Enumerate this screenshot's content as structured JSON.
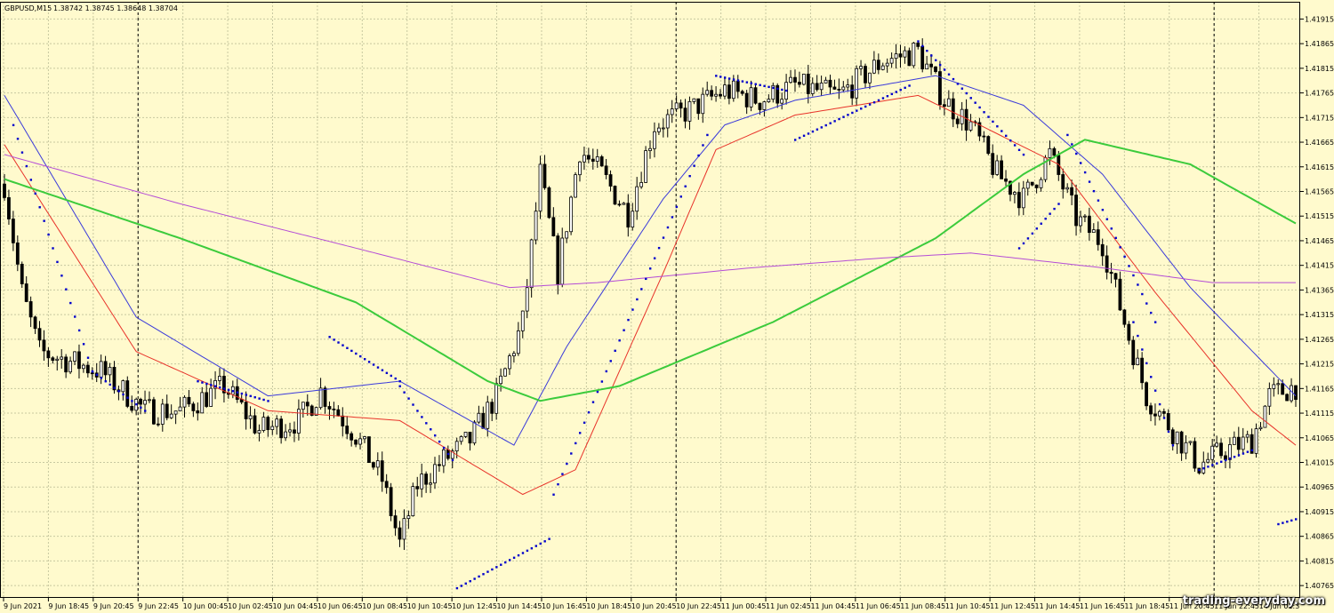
{
  "header": {
    "symbol_tf": "GBPUSD,M15",
    "ohlc": "1.38742 1.38745 1.38648 1.38704"
  },
  "watermark": "trading-everyday.com",
  "colors": {
    "background": "#FFFACD",
    "grid": "#C8C8A0",
    "candle": "#000000",
    "sar": "#0000CC",
    "ma_red": "#E8332A",
    "ma_blue": "#3A3ADA",
    "ma_green": "#3CCB3C",
    "ma_violet": "#B44CD6"
  },
  "chart_data": {
    "type": "candlestick",
    "symbol": "GBPUSD",
    "timeframe": "M15",
    "y_ticks": [
      "1.41915",
      "1.41865",
      "1.41815",
      "1.41765",
      "1.41715",
      "1.41665",
      "1.41615",
      "1.41565",
      "1.41515",
      "1.41465",
      "1.41415",
      "1.41365",
      "1.41315",
      "1.41265",
      "1.41215",
      "1.41165",
      "1.41115",
      "1.41065",
      "1.41015",
      "1.40965",
      "1.40915",
      "1.40865",
      "1.40815",
      "1.40765"
    ],
    "ylim": [
      1.4074,
      1.4195
    ],
    "x_ticks": [
      "9 Jun 2021",
      "9 Jun 18:45",
      "9 Jun 20:45",
      "9 Jun 22:45",
      "10 Jun 00:45",
      "10 Jun 02:45",
      "10 Jun 04:45",
      "10 Jun 06:45",
      "10 Jun 08:45",
      "10 Jun 10:45",
      "10 Jun 12:45",
      "10 Jun 14:45",
      "10 Jun 16:45",
      "10 Jun 18:45",
      "10 Jun 20:45",
      "10 Jun 22:45",
      "11 Jun 00:45",
      "11 Jun 02:45",
      "11 Jun 04:45",
      "11 Jun 06:45",
      "11 Jun 08:45",
      "11 Jun 10:45",
      "11 Jun 12:45",
      "11 Jun 14:45",
      "11 Jun 16:45",
      "11 Jun 18:45",
      "11 Jun 20:45",
      "11 Jun 22:45",
      "14 Jun 01:3"
    ],
    "day_separators": [
      "9 Jun 22:45",
      "10 Jun 22:45",
      "11 Jun 22:45"
    ],
    "price_keypoints": [
      [
        0,
        1.4158
      ],
      [
        4,
        1.4136
      ],
      [
        8,
        1.4124
      ],
      [
        15,
        1.4122
      ],
      [
        22,
        1.412
      ],
      [
        32,
        1.4112
      ],
      [
        40,
        1.4112
      ],
      [
        50,
        1.4117
      ],
      [
        58,
        1.4108
      ],
      [
        67,
        1.411
      ],
      [
        72,
        1.4116
      ],
      [
        80,
        1.4107
      ],
      [
        86,
        1.4098
      ],
      [
        90,
        1.4085
      ],
      [
        94,
        1.4097
      ],
      [
        100,
        1.4102
      ],
      [
        106,
        1.4106
      ],
      [
        112,
        1.4115
      ],
      [
        118,
        1.413
      ],
      [
        122,
        1.416
      ],
      [
        126,
        1.414
      ],
      [
        131,
        1.4165
      ],
      [
        136,
        1.416
      ],
      [
        142,
        1.4152
      ],
      [
        148,
        1.417
      ],
      [
        156,
        1.4173
      ],
      [
        164,
        1.4177
      ],
      [
        172,
        1.4175
      ],
      [
        180,
        1.4178
      ],
      [
        190,
        1.4176
      ],
      [
        200,
        1.4183
      ],
      [
        208,
        1.4185
      ],
      [
        214,
        1.4175
      ],
      [
        220,
        1.417
      ],
      [
        226,
        1.416
      ],
      [
        232,
        1.4155
      ],
      [
        238,
        1.4164
      ],
      [
        244,
        1.4151
      ],
      [
        250,
        1.4146
      ],
      [
        255,
        1.413
      ],
      [
        260,
        1.4115
      ],
      [
        266,
        1.4108
      ],
      [
        272,
        1.4101
      ],
      [
        278,
        1.4104
      ],
      [
        284,
        1.4106
      ],
      [
        288,
        1.4115
      ],
      [
        294,
        1.4117
      ]
    ],
    "series": [
      {
        "name": "ma_red",
        "color": "#E8332A",
        "points": [
          [
            0,
            1.4166
          ],
          [
            30,
            1.4124
          ],
          [
            60,
            1.4112
          ],
          [
            90,
            1.411
          ],
          [
            118,
            1.4095
          ],
          [
            130,
            1.41
          ],
          [
            150,
            1.414
          ],
          [
            162,
            1.4165
          ],
          [
            180,
            1.4172
          ],
          [
            208,
            1.4176
          ],
          [
            222,
            1.417
          ],
          [
            240,
            1.4162
          ],
          [
            262,
            1.4136
          ],
          [
            284,
            1.4112
          ],
          [
            294,
            1.4105
          ]
        ]
      },
      {
        "name": "ma_blue",
        "color": "#3A3ADA",
        "points": [
          [
            0,
            1.4176
          ],
          [
            30,
            1.4131
          ],
          [
            60,
            1.4115
          ],
          [
            90,
            1.4118
          ],
          [
            116,
            1.4105
          ],
          [
            128,
            1.4125
          ],
          [
            150,
            1.4155
          ],
          [
            164,
            1.417
          ],
          [
            180,
            1.4175
          ],
          [
            212,
            1.418
          ],
          [
            232,
            1.4174
          ],
          [
            250,
            1.416
          ],
          [
            270,
            1.4137
          ],
          [
            294,
            1.4115
          ]
        ]
      },
      {
        "name": "ma_green",
        "color": "#3CCB3C",
        "points": [
          [
            0,
            1.4159
          ],
          [
            40,
            1.4147
          ],
          [
            80,
            1.4134
          ],
          [
            110,
            1.4118
          ],
          [
            122,
            1.4114
          ],
          [
            140,
            1.4117
          ],
          [
            175,
            1.413
          ],
          [
            212,
            1.4147
          ],
          [
            232,
            1.416
          ],
          [
            246,
            1.4167
          ],
          [
            270,
            1.4162
          ],
          [
            294,
            1.415
          ]
        ]
      },
      {
        "name": "ma_violet",
        "color": "#B44CD6",
        "points": [
          [
            0,
            1.4164
          ],
          [
            40,
            1.4154
          ],
          [
            80,
            1.4145
          ],
          [
            115,
            1.4137
          ],
          [
            135,
            1.4138
          ],
          [
            170,
            1.4141
          ],
          [
            200,
            1.4143
          ],
          [
            220,
            1.4144
          ],
          [
            250,
            1.4141
          ],
          [
            275,
            1.4138
          ],
          [
            294,
            1.4138
          ]
        ]
      }
    ],
    "parabolic_sar": [
      {
        "x": [
          2,
          20
        ],
        "y": [
          1.417,
          1.412
        ]
      },
      {
        "x": [
          20,
          32
        ],
        "y": [
          1.412,
          1.4112
        ]
      },
      {
        "x": [
          44,
          60
        ],
        "y": [
          1.4118,
          1.4114
        ]
      },
      {
        "x": [
          74,
          90
        ],
        "y": [
          1.4127,
          1.4118
        ]
      },
      {
        "x": [
          90,
          102
        ],
        "y": [
          1.4117,
          1.4102
        ]
      },
      {
        "x": [
          103,
          124
        ],
        "y": [
          1.4076,
          1.4086
        ]
      },
      {
        "x": [
          125,
          160
        ],
        "y": [
          1.4095,
          1.4168
        ]
      },
      {
        "x": [
          162,
          178
        ],
        "y": [
          1.418,
          1.4177
        ]
      },
      {
        "x": [
          180,
          206
        ],
        "y": [
          1.4167,
          1.4178
        ]
      },
      {
        "x": [
          208,
          232
        ],
        "y": [
          1.4187,
          1.4164
        ]
      },
      {
        "x": [
          231,
          240
        ],
        "y": [
          1.4145,
          1.4154
        ]
      },
      {
        "x": [
          242,
          262
        ],
        "y": [
          1.4168,
          1.413
        ]
      },
      {
        "x": [
          257,
          266
        ],
        "y": [
          1.413,
          1.4105
        ]
      },
      {
        "x": [
          272,
          284
        ],
        "y": [
          1.41,
          1.4104
        ]
      },
      {
        "x": [
          290,
          294
        ],
        "y": [
          1.4089,
          1.409
        ]
      }
    ]
  }
}
